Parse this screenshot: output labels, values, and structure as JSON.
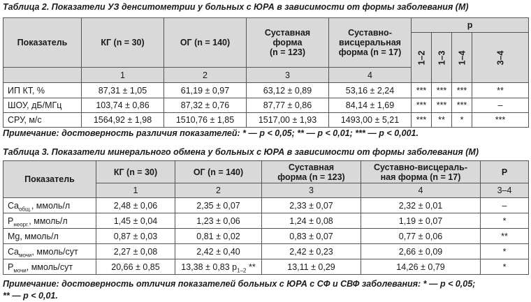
{
  "table2": {
    "caption": "Таблица 2. Показатели УЗ денситометрии у больных с ЮРА в зависимости от формы заболевания (М)",
    "header": {
      "indicator": "Показатель",
      "kg": "КГ (n = 30)",
      "og": "ОГ (n = 140)",
      "sust": [
        "Суставная",
        "форма",
        "(n = 123)"
      ],
      "sv": [
        "Суставно-",
        "висцеральная",
        "форма (n = 17)"
      ],
      "p": "p",
      "p_cols": [
        "1–2",
        "1–3",
        "1–4",
        "3–4"
      ],
      "nums": [
        "1",
        "2",
        "3",
        "4"
      ]
    },
    "rows": [
      {
        "name": "ИП КТ, %",
        "v": [
          "87,31 ± 1,05",
          "61,19 ± 0,97",
          "63,12 ± 0,89",
          "53,16 ± 2,24"
        ],
        "p": [
          "***",
          "***",
          "***",
          "**"
        ]
      },
      {
        "name": "ШОУ, дБ/МГц",
        "v": [
          "103,74 ± 0,86",
          "87,32 ± 0,76",
          "87,77 ± 0,86",
          "84,14 ± 1,69"
        ],
        "p": [
          "***",
          "***",
          "***",
          "–"
        ]
      },
      {
        "name": "СРУ, м/с",
        "v": [
          "1564,92 ± 1,98",
          "1510,76 ± 1,85",
          "1517,00 ± 1,93",
          "1493,00 ± 5,21"
        ],
        "p": [
          "***",
          "**",
          "*",
          "***"
        ]
      }
    ],
    "note": "Примечание: достоверность различия показателей: * — p < 0,05; ** — p < 0,01; *** — p < 0,001."
  },
  "table3": {
    "caption": "Таблица 3. Показатели минерального обмена у больных с ЮРА в зависимости от формы заболевания (М)",
    "header": {
      "indicator": "Показатель",
      "kg": "КГ (n = 30)",
      "og": "ОГ (n = 140)",
      "sust": [
        "Суставная",
        "форма (n = 123)"
      ],
      "sv": [
        "Суставно-висцераль-",
        "ная форма (n = 17)"
      ],
      "p": "P",
      "nums": [
        "1",
        "2",
        "3",
        "4",
        "3–4"
      ]
    },
    "rows": [
      {
        "base": "Ca",
        "sub": "общ.",
        "unit": ", ммоль/л",
        "v": [
          "2,48 ± 0,06",
          "2,35 ± 0,07",
          "2,33 ± 0,07",
          "2,32 ± 0,01"
        ],
        "p": "–"
      },
      {
        "base": "P",
        "sub": "неорг.",
        "unit": ", ммоль/л",
        "v": [
          "1,45 ± 0,04",
          "1,23 ± 0,06",
          "1,24 ± 0,08",
          "1,19 ± 0,07"
        ],
        "p": "*"
      },
      {
        "base": "Mg, ммоль/л",
        "sub": "",
        "unit": "",
        "v": [
          "0,87 ± 0,03",
          "0,81 ± 0,02",
          "0,83 ± 0,07",
          "0,77 ± 0,06"
        ],
        "p": "**"
      },
      {
        "base": "Ca",
        "sub": "мочи",
        "unit": ", ммоль/сут",
        "v": [
          "2,27 ± 0,08",
          "2,42 ± 0,40",
          "2,42 ± 0,23",
          "2,66 ± 0,09"
        ],
        "p": "*"
      },
      {
        "base": "P",
        "sub": "мочи",
        "unit": ", ммоль/сут",
        "v": [
          "20,66 ± 0,85",
          "13,38 ± 0,83 p",
          "13,11 ± 0,29",
          "14,26 ± 0,79"
        ],
        "p": "*",
        "og_sub": "1–2",
        "og_star": " **"
      }
    ],
    "note": [
      "Примечание: достоверность отличия показателей больных с ЮРА с СФ и СВФ заболевания: * — p < 0,05;",
      "** — p < 0,01."
    ]
  }
}
